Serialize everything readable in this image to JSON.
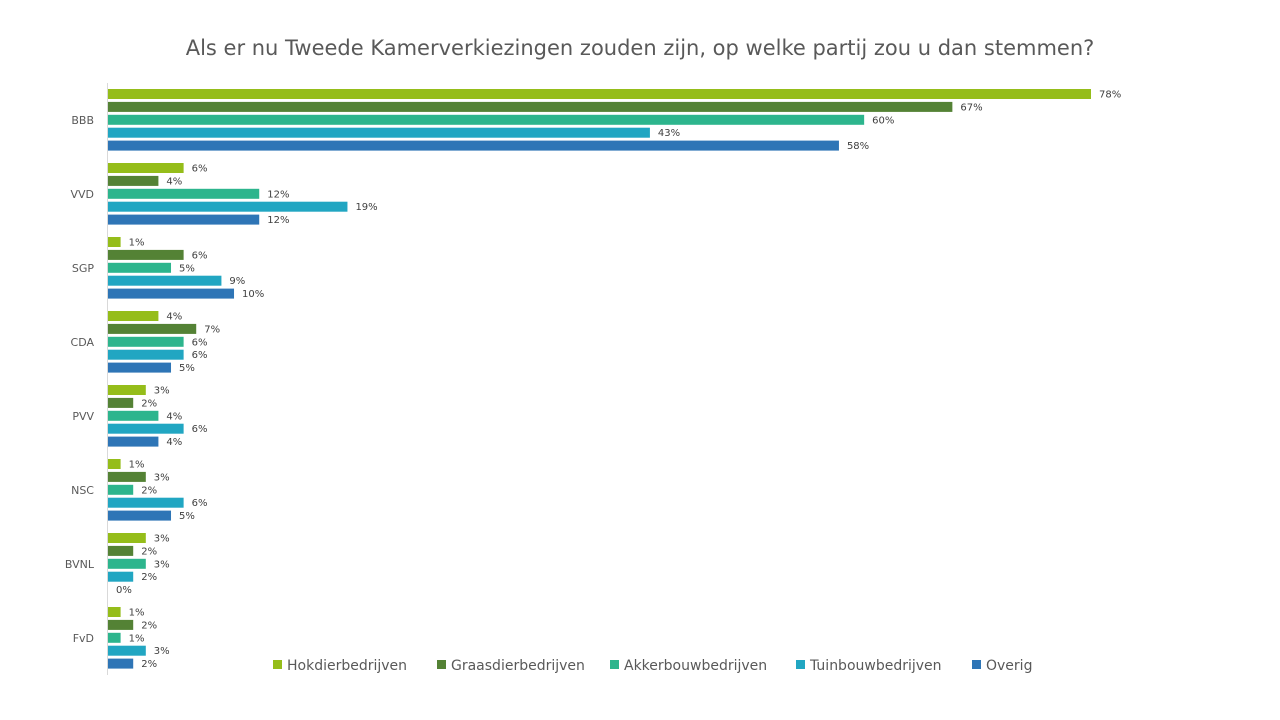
{
  "chart_data": {
    "type": "bar",
    "orientation": "horizontal",
    "title": "Als er nu Tweede Kamerverkiezingen zouden zijn, op welke partij zou u dan stemmen?",
    "categories": [
      "BBB",
      "VVD",
      "SGP",
      "CDA",
      "PVV",
      "NSC",
      "BVNL",
      "FvD"
    ],
    "series": [
      {
        "name": "Hokdierbedrijven",
        "color": "#95bd1a",
        "values": [
          78,
          6,
          1,
          4,
          3,
          1,
          3,
          1
        ]
      },
      {
        "name": "Graasdierbedrijven",
        "color": "#548235",
        "values": [
          67,
          4,
          6,
          7,
          2,
          3,
          2,
          2
        ]
      },
      {
        "name": "Akkerbouwbedrijven",
        "color": "#2db58d",
        "values": [
          60,
          12,
          5,
          6,
          4,
          2,
          3,
          1
        ]
      },
      {
        "name": "Tuinbouwbedrijven",
        "color": "#21a6c2",
        "values": [
          43,
          19,
          9,
          6,
          6,
          6,
          2,
          3
        ]
      },
      {
        "name": "Overig",
        "color": "#2e75b6",
        "values": [
          58,
          12,
          10,
          5,
          4,
          5,
          0,
          2
        ]
      }
    ],
    "value_suffix": "%",
    "xlim": [
      0,
      78
    ],
    "grid": false,
    "legend_position": "bottom"
  }
}
